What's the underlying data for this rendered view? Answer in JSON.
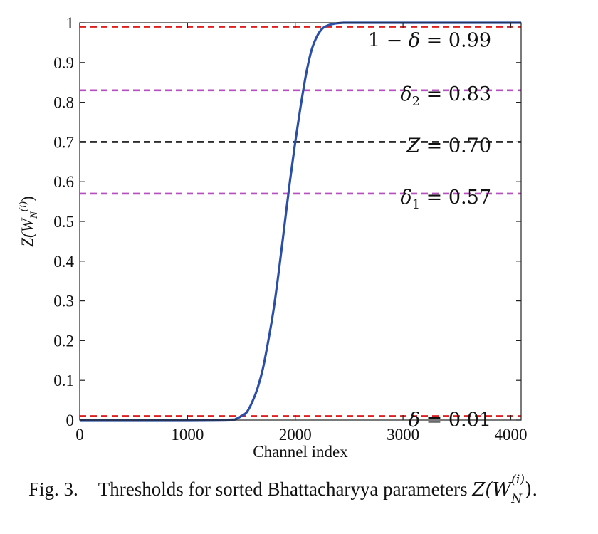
{
  "chart_data": {
    "type": "line",
    "title": "",
    "xlabel": "Channel index",
    "ylabel": "Z(W_N^(i))",
    "xlim": [
      0,
      4096
    ],
    "ylim": [
      0,
      1
    ],
    "xticks": [
      0,
      1000,
      2000,
      3000,
      4000
    ],
    "yticks": [
      0,
      0.1,
      0.2,
      0.3,
      0.4,
      0.5,
      0.6,
      0.7,
      0.8,
      0.9,
      1
    ],
    "grid": false,
    "series": [
      {
        "color": "#2b4fa8",
        "x": [
          0,
          1000,
          1400,
          1450,
          1500,
          1550,
          1600,
          1650,
          1700,
          1750,
          1800,
          1850,
          1900,
          1950,
          2000,
          2050,
          2100,
          2150,
          2200,
          2250,
          2300,
          2350,
          2400,
          2450,
          2500,
          3000,
          4096
        ],
        "y": [
          0,
          0,
          0.001,
          0.003,
          0.01,
          0.02,
          0.045,
          0.08,
          0.13,
          0.2,
          0.28,
          0.38,
          0.49,
          0.6,
          0.7,
          0.79,
          0.87,
          0.93,
          0.965,
          0.985,
          0.993,
          0.997,
          0.999,
          1,
          1,
          1,
          1
        ]
      }
    ],
    "thresholds": [
      {
        "value": 0.99,
        "color": "#e02020",
        "label_lhs": "1 − δ",
        "label_value": "0.99"
      },
      {
        "value": 0.83,
        "color": "#b84fc0",
        "label_lhs": "δ",
        "label_sub": "2",
        "label_value": "0.83"
      },
      {
        "value": 0.7,
        "color": "#111111",
        "label_lhs": "Z",
        "label_value": "0.70"
      },
      {
        "value": 0.57,
        "color": "#b84fc0",
        "label_lhs": "δ",
        "label_sub": "1",
        "label_value": "0.57"
      },
      {
        "value": 0.01,
        "color": "#e02020",
        "label_lhs": "δ",
        "label_value": "0.01"
      }
    ]
  },
  "caption": {
    "fig_label": "Fig. 3.",
    "text": "Thresholds for sorted Bhattacharyya parameters",
    "math_main": "Z(W",
    "math_sub": "N",
    "math_sup": "(i)",
    "math_end": ")."
  }
}
